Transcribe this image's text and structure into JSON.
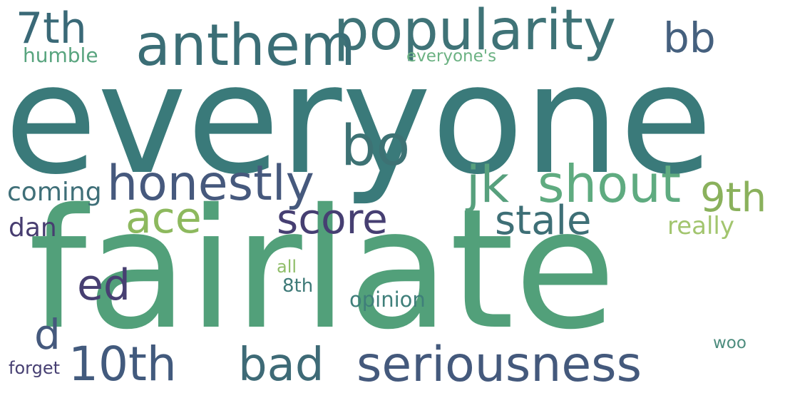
{
  "words": [
    {
      "text": "everyone",
      "color": "#3a7a7a"
    },
    {
      "text": "fairlate",
      "color": "#52a07a"
    },
    {
      "text": "popularity",
      "color": "#3f7377"
    },
    {
      "text": "anthem",
      "color": "#3b6e76"
    },
    {
      "text": "7th",
      "color": "#3a6977"
    },
    {
      "text": "bb",
      "color": "#45607e"
    },
    {
      "text": "humble",
      "color": "#58a47e"
    },
    {
      "text": "everyone's",
      "color": "#6cb283"
    },
    {
      "text": "bo",
      "color": "#3d7274"
    },
    {
      "text": "honestly",
      "color": "#46597d"
    },
    {
      "text": "jk",
      "color": "#57a07d"
    },
    {
      "text": "shout",
      "color": "#5fab80"
    },
    {
      "text": "9th",
      "color": "#8ab15c"
    },
    {
      "text": "coming",
      "color": "#3f6f78"
    },
    {
      "text": "ace",
      "color": "#8db95e"
    },
    {
      "text": "score",
      "color": "#463f72"
    },
    {
      "text": "stale",
      "color": "#3e6f76"
    },
    {
      "text": "really",
      "color": "#a2c56e"
    },
    {
      "text": "dan",
      "color": "#473d70"
    },
    {
      "text": "ed",
      "color": "#473f72"
    },
    {
      "text": "all",
      "color": "#8fbd68"
    },
    {
      "text": "8th",
      "color": "#3f7a78"
    },
    {
      "text": "opinion",
      "color": "#3f7f7a"
    },
    {
      "text": "d",
      "color": "#45597d"
    },
    {
      "text": "10th",
      "color": "#425a7d"
    },
    {
      "text": "bad",
      "color": "#3e6a76"
    },
    {
      "text": "seriousness",
      "color": "#44597c"
    },
    {
      "text": "woo",
      "color": "#4c8c7d"
    },
    {
      "text": "forget",
      "color": "#463f72"
    }
  ]
}
